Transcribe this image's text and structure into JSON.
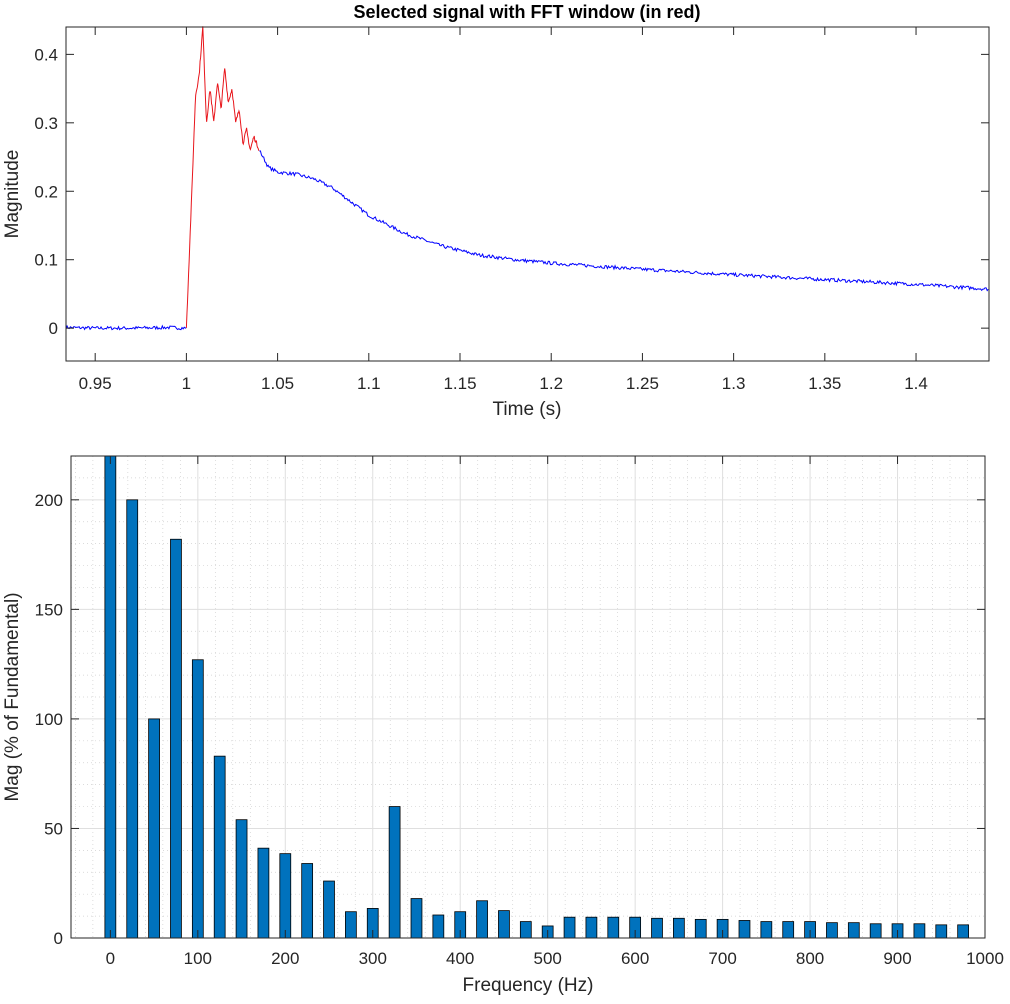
{
  "colors": {
    "fft_window": "#e8151b",
    "signal": "#0000ff",
    "bar_fill": "#0072bd",
    "axis": "#262626",
    "grid": "#dfdfdf"
  },
  "chart_data": [
    {
      "type": "line",
      "title": "Selected signal with FFT window (in red)",
      "xlabel": "Time (s)",
      "ylabel": "Magnitude",
      "xlim": [
        0.934,
        1.44
      ],
      "ylim": [
        -0.048,
        0.44
      ],
      "xticks": [
        0.95,
        1,
        1.05,
        1.1,
        1.15,
        1.2,
        1.25,
        1.3,
        1.35,
        1.4
      ],
      "xtick_labels": [
        "0.95",
        "1",
        "1.05",
        "1.1",
        "1.15",
        "1.2",
        "1.25",
        "1.3",
        "1.35",
        "1.4"
      ],
      "yticks": [
        0,
        0.1,
        0.2,
        0.3,
        0.4
      ],
      "ytick_labels": [
        "0",
        "0.1",
        "0.2",
        "0.3",
        "0.4"
      ],
      "grid": false,
      "series": [
        {
          "color": "#0000ff",
          "x": [
            0.934,
            0.95,
            0.97,
            0.99,
            1.0,
            1.04,
            1.045,
            1.05,
            1.06,
            1.07,
            1.08,
            1.09,
            1.1,
            1.12,
            1.14,
            1.16,
            1.18,
            1.2,
            1.25,
            1.3,
            1.35,
            1.4,
            1.44
          ],
          "y": [
            0.001,
            0.0,
            0.0,
            0.001,
            0.0,
            0.26,
            0.235,
            0.228,
            0.225,
            0.218,
            0.205,
            0.185,
            0.165,
            0.138,
            0.12,
            0.107,
            0.1,
            0.095,
            0.086,
            0.078,
            0.071,
            0.064,
            0.057
          ]
        },
        {
          "color": "#e8151b",
          "x": [
            1.0,
            1.003,
            1.005,
            1.007,
            1.009,
            1.011,
            1.013,
            1.015,
            1.017,
            1.019,
            1.021,
            1.023,
            1.025,
            1.027,
            1.029,
            1.031,
            1.033,
            1.035,
            1.037,
            1.04
          ],
          "y": [
            0.0,
            0.2,
            0.34,
            0.37,
            0.44,
            0.3,
            0.35,
            0.3,
            0.36,
            0.32,
            0.38,
            0.33,
            0.35,
            0.3,
            0.32,
            0.27,
            0.29,
            0.26,
            0.28,
            0.26
          ]
        }
      ]
    },
    {
      "type": "bar",
      "title": "",
      "xlabel": "Frequency (Hz)",
      "ylabel": "Mag (% of Fundamental)",
      "xlim": [
        -45,
        1000
      ],
      "ylim": [
        0,
        220
      ],
      "xticks": [
        0,
        100,
        200,
        300,
        400,
        500,
        600,
        700,
        800,
        900,
        1000
      ],
      "xtick_labels": [
        "0",
        "100",
        "200",
        "300",
        "400",
        "500",
        "600",
        "700",
        "800",
        "900",
        "1000"
      ],
      "yticks": [
        0,
        50,
        100,
        150,
        200
      ],
      "ytick_labels": [
        "0",
        "50",
        "100",
        "150",
        "200"
      ],
      "grid": true,
      "minor_grid": true,
      "x": [
        0,
        25,
        50,
        75,
        100,
        125,
        150,
        175,
        200,
        225,
        250,
        275,
        300,
        325,
        350,
        375,
        400,
        425,
        450,
        475,
        500,
        525,
        550,
        575,
        600,
        625,
        650,
        675,
        700,
        725,
        750,
        775,
        800,
        825,
        850,
        875,
        900,
        925,
        950,
        975
      ],
      "values": [
        220,
        200,
        100,
        182,
        127,
        83,
        54,
        41,
        38.5,
        34,
        26,
        12,
        13.5,
        60,
        18,
        10.5,
        12,
        17,
        12.5,
        7.5,
        5.5,
        9.5,
        9.5,
        9.5,
        9.5,
        9,
        9,
        8.5,
        8.5,
        8,
        7.5,
        7.5,
        7.5,
        7,
        7,
        6.5,
        6.5,
        6.5,
        6,
        6
      ]
    }
  ]
}
